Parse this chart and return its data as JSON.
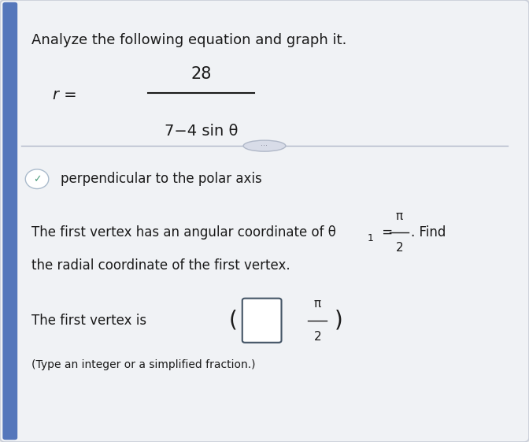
{
  "background_color": "#e8e8e8",
  "title_line": "Analyze the following equation and graph it.",
  "equation_numerator": "28",
  "equation_denominator": "7−4 sin θ",
  "equation_prefix": "r =",
  "divider_color": "#b0b8c8",
  "checkbox_color": "#4a9a7a",
  "checkbox_text": "perpendicular to the polar axis",
  "body_text_1": "The first vertex has an angular coordinate of θ",
  "body_frac_num": "π",
  "body_frac_den": "2",
  "body_text_1c": ". Find",
  "body_text_2": "the radial coordinate of the first vertex.",
  "answer_prefix": "The first vertex is",
  "answer_frac_num": "π",
  "answer_frac_den": "2",
  "footnote": "(Type an integer or a simplified fraction.)",
  "title_fontsize": 13,
  "body_fontsize": 12,
  "small_fontsize": 10,
  "text_color": "#1a1a1a",
  "panel_bg": "#f0f2f5",
  "panel_edge": "#c8cdd8",
  "left_bar_color": "#5577bb"
}
